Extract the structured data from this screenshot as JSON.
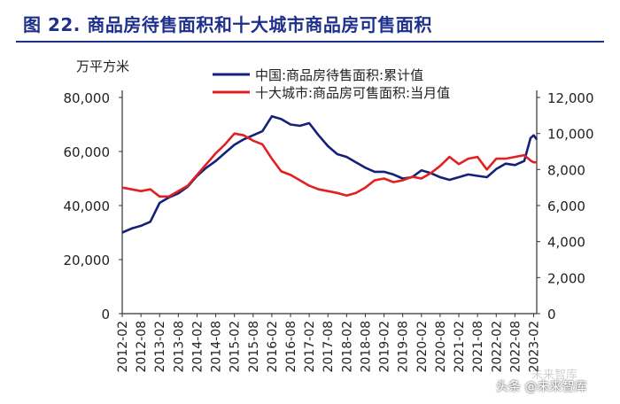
{
  "figure": {
    "title": "图 22.  商品房待售面积和十大城市商品房可售面积",
    "watermark": "头条 @未来智库",
    "watermark_faint": "未来智库"
  },
  "colors": {
    "title": "#1e2f8c",
    "series_cn": "#15207a",
    "series_10": "#e1201f",
    "axis": "#333333"
  },
  "chart_data": {
    "type": "line",
    "unit_label": "万平方米",
    "x_tick_labels": [
      "2012-02",
      "2012-08",
      "2013-02",
      "2013-08",
      "2014-02",
      "2014-08",
      "2015-02",
      "2015-08",
      "2016-02",
      "2016-08",
      "2017-02",
      "2017-08",
      "2018-02",
      "2018-08",
      "2019-02",
      "2019-08",
      "2020-02",
      "2020-08",
      "2021-02",
      "2021-08",
      "2022-02",
      "2022-08",
      "2023-02"
    ],
    "y_left": {
      "ticks": [
        "0",
        "20,000",
        "40,000",
        "60,000",
        "80,000"
      ],
      "range": [
        0,
        80000
      ]
    },
    "y_right": {
      "ticks": [
        "0",
        "2,000",
        "4,000",
        "6,000",
        "8,000",
        "10,000",
        "12,000"
      ],
      "range": [
        0,
        12000
      ]
    },
    "series": [
      {
        "name": "中国:商品房待售面积:累计值",
        "axis": "left",
        "color": "#15207a",
        "points": [
          [
            "2012-02",
            30000
          ],
          [
            "2012-05",
            31500
          ],
          [
            "2012-08",
            32500
          ],
          [
            "2012-11",
            34000
          ],
          [
            "2013-02",
            41000
          ],
          [
            "2013-05",
            43000
          ],
          [
            "2013-08",
            44500
          ],
          [
            "2013-11",
            47000
          ],
          [
            "2014-02",
            51000
          ],
          [
            "2014-05",
            54000
          ],
          [
            "2014-08",
            56500
          ],
          [
            "2014-11",
            59500
          ],
          [
            "2015-02",
            62500
          ],
          [
            "2015-05",
            64500
          ],
          [
            "2015-08",
            66000
          ],
          [
            "2015-11",
            67500
          ],
          [
            "2016-02",
            73000
          ],
          [
            "2016-05",
            72000
          ],
          [
            "2016-08",
            70000
          ],
          [
            "2016-11",
            69500
          ],
          [
            "2017-02",
            70500
          ],
          [
            "2017-05",
            66000
          ],
          [
            "2017-08",
            62000
          ],
          [
            "2017-11",
            59000
          ],
          [
            "2018-02",
            58000
          ],
          [
            "2018-05",
            56000
          ],
          [
            "2018-08",
            54000
          ],
          [
            "2018-11",
            52500
          ],
          [
            "2019-02",
            52500
          ],
          [
            "2019-05",
            51500
          ],
          [
            "2019-08",
            50000
          ],
          [
            "2019-11",
            50500
          ],
          [
            "2020-02",
            53000
          ],
          [
            "2020-05",
            52000
          ],
          [
            "2020-08",
            50500
          ],
          [
            "2020-11",
            49500
          ],
          [
            "2021-02",
            50500
          ],
          [
            "2021-05",
            51500
          ],
          [
            "2021-08",
            51000
          ],
          [
            "2021-11",
            50500
          ],
          [
            "2022-02",
            53500
          ],
          [
            "2022-05",
            55500
          ],
          [
            "2022-08",
            55000
          ],
          [
            "2022-11",
            56500
          ],
          [
            "2023-01",
            65000
          ],
          [
            "2023-02",
            66000
          ],
          [
            "2023-03",
            64500
          ]
        ]
      },
      {
        "name": "十大城市:商品房可售面积:当月值",
        "axis": "right",
        "color": "#e1201f",
        "points": [
          [
            "2012-02",
            7000
          ],
          [
            "2012-05",
            6900
          ],
          [
            "2012-08",
            6800
          ],
          [
            "2012-11",
            6900
          ],
          [
            "2013-02",
            6500
          ],
          [
            "2013-05",
            6500
          ],
          [
            "2013-08",
            6800
          ],
          [
            "2013-11",
            7100
          ],
          [
            "2014-02",
            7700
          ],
          [
            "2014-05",
            8300
          ],
          [
            "2014-08",
            8900
          ],
          [
            "2014-11",
            9400
          ],
          [
            "2015-02",
            10000
          ],
          [
            "2015-05",
            9900
          ],
          [
            "2015-08",
            9600
          ],
          [
            "2015-11",
            9400
          ],
          [
            "2016-02",
            8600
          ],
          [
            "2016-05",
            7900
          ],
          [
            "2016-08",
            7700
          ],
          [
            "2016-11",
            7400
          ],
          [
            "2017-02",
            7100
          ],
          [
            "2017-05",
            6900
          ],
          [
            "2017-08",
            6800
          ],
          [
            "2017-11",
            6700
          ],
          [
            "2018-02",
            6550
          ],
          [
            "2018-05",
            6700
          ],
          [
            "2018-08",
            7000
          ],
          [
            "2018-11",
            7400
          ],
          [
            "2019-02",
            7500
          ],
          [
            "2019-05",
            7300
          ],
          [
            "2019-08",
            7400
          ],
          [
            "2019-11",
            7600
          ],
          [
            "2020-02",
            7500
          ],
          [
            "2020-05",
            7800
          ],
          [
            "2020-08",
            8200
          ],
          [
            "2020-11",
            8700
          ],
          [
            "2021-02",
            8300
          ],
          [
            "2021-05",
            8600
          ],
          [
            "2021-08",
            8700
          ],
          [
            "2021-11",
            8000
          ],
          [
            "2022-02",
            8600
          ],
          [
            "2022-05",
            8600
          ],
          [
            "2022-08",
            8700
          ],
          [
            "2022-11",
            8800
          ],
          [
            "2023-01",
            8500
          ],
          [
            "2023-02",
            8400
          ],
          [
            "2023-03",
            8400
          ]
        ]
      }
    ],
    "legend_position": "top-center",
    "grid": false
  }
}
